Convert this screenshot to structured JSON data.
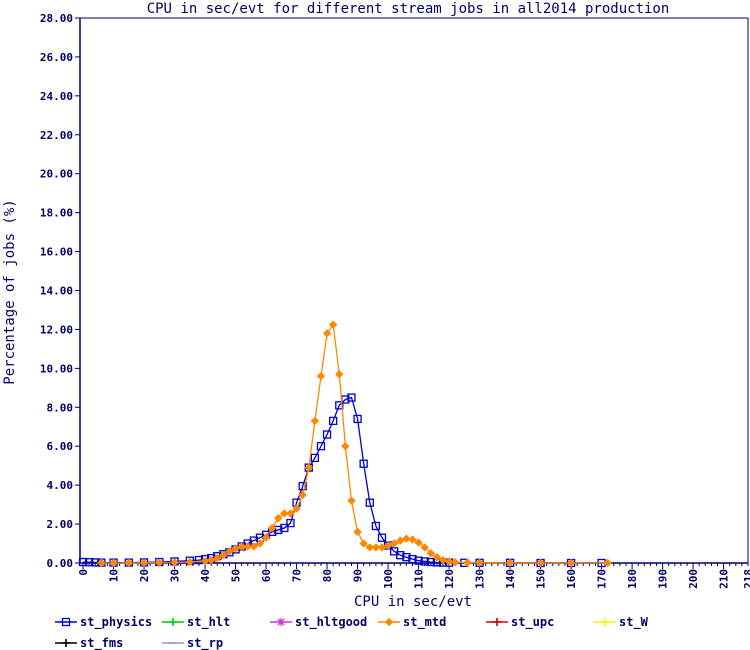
{
  "chart_data": {
    "type": "line",
    "title": "CPU in sec/evt for different stream jobs in all2014 production",
    "xlabel": "CPU in sec/evt",
    "ylabel": "Percentage of jobs (%)",
    "xlim": [
      -1,
      218
    ],
    "ylim": [
      0,
      28
    ],
    "x_ticks": [
      0,
      10,
      20,
      30,
      40,
      50,
      60,
      70,
      80,
      90,
      100,
      110,
      120,
      130,
      140,
      150,
      160,
      170,
      180,
      190,
      200,
      210,
      218
    ],
    "y_ticks": [
      "0.00",
      "2.00",
      "4.00",
      "6.00",
      "8.00",
      "10.00",
      "12.00",
      "14.00",
      "16.00",
      "18.00",
      "20.00",
      "22.00",
      "24.00",
      "26.00",
      "28.00"
    ],
    "grid": false,
    "legend_position": "bottom",
    "legend": [
      {
        "name": "st_physics",
        "color": "#0000cc",
        "marker": "square"
      },
      {
        "name": "st_hlt",
        "color": "#00cc00",
        "marker": "plus"
      },
      {
        "name": "st_hltgood",
        "color": "#cc33cc",
        "marker": "star"
      },
      {
        "name": "st_mtd",
        "color": "#ff8800",
        "marker": "diamond"
      },
      {
        "name": "st_upc",
        "color": "#cc0000",
        "marker": "plus"
      },
      {
        "name": "st_W",
        "color": "#ffee00",
        "marker": "plus"
      },
      {
        "name": "st_fms",
        "color": "#000000",
        "marker": "plus"
      },
      {
        "name": "st_rp",
        "color": "#9999cc",
        "marker": "line"
      }
    ],
    "series": [
      {
        "name": "st_physics",
        "color": "#0000cc",
        "marker": "square",
        "points": [
          [
            0,
            0.05
          ],
          [
            2,
            0.04
          ],
          [
            4,
            0.03
          ],
          [
            6,
            0.02
          ],
          [
            10,
            0.02
          ],
          [
            15,
            0.02
          ],
          [
            20,
            0.03
          ],
          [
            25,
            0.05
          ],
          [
            30,
            0.08
          ],
          [
            35,
            0.12
          ],
          [
            38,
            0.15
          ],
          [
            40,
            0.2
          ],
          [
            42,
            0.25
          ],
          [
            44,
            0.35
          ],
          [
            46,
            0.45
          ],
          [
            48,
            0.55
          ],
          [
            50,
            0.7
          ],
          [
            52,
            0.85
          ],
          [
            54,
            1.0
          ],
          [
            56,
            1.15
          ],
          [
            58,
            1.3
          ],
          [
            60,
            1.45
          ],
          [
            62,
            1.6
          ],
          [
            64,
            1.7
          ],
          [
            66,
            1.8
          ],
          [
            68,
            2.05
          ],
          [
            70,
            3.1
          ],
          [
            72,
            3.95
          ],
          [
            74,
            4.9
          ],
          [
            76,
            5.4
          ],
          [
            78,
            6.0
          ],
          [
            80,
            6.6
          ],
          [
            82,
            7.3
          ],
          [
            84,
            8.1
          ],
          [
            86,
            8.4
          ],
          [
            88,
            8.5
          ],
          [
            90,
            7.4
          ],
          [
            92,
            5.1
          ],
          [
            94,
            3.1
          ],
          [
            96,
            1.9
          ],
          [
            98,
            1.3
          ],
          [
            100,
            0.9
          ],
          [
            102,
            0.6
          ],
          [
            104,
            0.4
          ],
          [
            106,
            0.3
          ],
          [
            108,
            0.2
          ],
          [
            110,
            0.12
          ],
          [
            112,
            0.08
          ],
          [
            114,
            0.05
          ],
          [
            116,
            0.03
          ],
          [
            118,
            0.02
          ],
          [
            120,
            0.02
          ],
          [
            125,
            0.01
          ],
          [
            130,
            0.01
          ],
          [
            140,
            0.01
          ],
          [
            150,
            0.0
          ],
          [
            160,
            0.0
          ],
          [
            170,
            0.0
          ]
        ]
      },
      {
        "name": "st_mtd",
        "color": "#ff8800",
        "marker": "diamond",
        "points": [
          [
            6,
            0.0
          ],
          [
            10,
            0.0
          ],
          [
            15,
            0.0
          ],
          [
            20,
            0.01
          ],
          [
            25,
            0.02
          ],
          [
            30,
            0.03
          ],
          [
            35,
            0.05
          ],
          [
            40,
            0.1
          ],
          [
            42,
            0.15
          ],
          [
            44,
            0.25
          ],
          [
            46,
            0.4
          ],
          [
            48,
            0.6
          ],
          [
            50,
            0.75
          ],
          [
            52,
            0.85
          ],
          [
            54,
            0.85
          ],
          [
            56,
            0.85
          ],
          [
            58,
            1.0
          ],
          [
            60,
            1.3
          ],
          [
            62,
            1.8
          ],
          [
            64,
            2.3
          ],
          [
            66,
            2.55
          ],
          [
            68,
            2.55
          ],
          [
            70,
            2.8
          ],
          [
            72,
            3.5
          ],
          [
            74,
            4.9
          ],
          [
            76,
            7.3
          ],
          [
            78,
            9.6
          ],
          [
            80,
            11.8
          ],
          [
            82,
            12.25
          ],
          [
            84,
            9.7
          ],
          [
            86,
            6.0
          ],
          [
            88,
            3.2
          ],
          [
            90,
            1.6
          ],
          [
            92,
            1.0
          ],
          [
            94,
            0.8
          ],
          [
            96,
            0.8
          ],
          [
            98,
            0.8
          ],
          [
            100,
            0.9
          ],
          [
            102,
            1.0
          ],
          [
            104,
            1.15
          ],
          [
            106,
            1.25
          ],
          [
            108,
            1.2
          ],
          [
            110,
            1.05
          ],
          [
            112,
            0.8
          ],
          [
            114,
            0.5
          ],
          [
            116,
            0.3
          ],
          [
            118,
            0.15
          ],
          [
            120,
            0.08
          ],
          [
            122,
            0.04
          ],
          [
            126,
            0.02
          ],
          [
            130,
            0.01
          ],
          [
            140,
            0.01
          ],
          [
            150,
            0.0
          ],
          [
            160,
            0.0
          ],
          [
            172,
            0.0
          ]
        ]
      }
    ]
  }
}
